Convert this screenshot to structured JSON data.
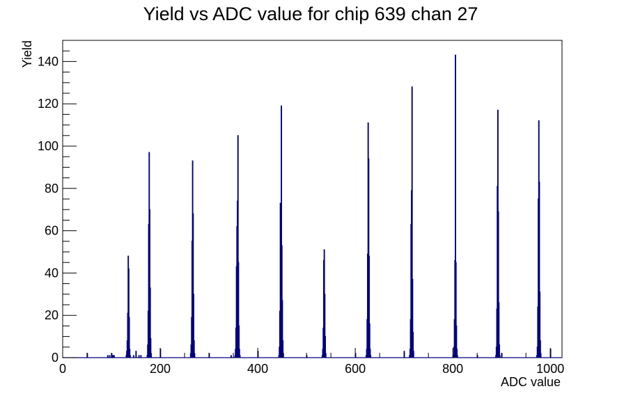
{
  "chart_data": {
    "type": "histogram",
    "title": "Yield vs ADC value for chip 639 chan 27",
    "xlabel": "ADC value",
    "ylabel": "Yield",
    "xlim": [
      0,
      1024
    ],
    "ylim": [
      0,
      150
    ],
    "x_ticks": [
      0,
      200,
      400,
      600,
      800,
      1000
    ],
    "y_ticks": [
      0,
      20,
      40,
      60,
      80,
      100,
      120,
      140
    ],
    "grid": false,
    "legend": "none",
    "line_color": "#000080",
    "bin_width": 1,
    "bins": [
      [
        50,
        2
      ],
      [
        92,
        1
      ],
      [
        96,
        1
      ],
      [
        100,
        2
      ],
      [
        101,
        1
      ],
      [
        103,
        1
      ],
      [
        105,
        1
      ],
      [
        130,
        1
      ],
      [
        131,
        3
      ],
      [
        132,
        8
      ],
      [
        133,
        21
      ],
      [
        134,
        48
      ],
      [
        135,
        42
      ],
      [
        136,
        19
      ],
      [
        137,
        4
      ],
      [
        138,
        1
      ],
      [
        145,
        1
      ],
      [
        150,
        3
      ],
      [
        156,
        1
      ],
      [
        160,
        1
      ],
      [
        173,
        1
      ],
      [
        174,
        6
      ],
      [
        175,
        22
      ],
      [
        176,
        63
      ],
      [
        177,
        97
      ],
      [
        178,
        70
      ],
      [
        179,
        33
      ],
      [
        180,
        9
      ],
      [
        181,
        2
      ],
      [
        200,
        4
      ],
      [
        262,
        2
      ],
      [
        263,
        6
      ],
      [
        264,
        19
      ],
      [
        265,
        55
      ],
      [
        266,
        93
      ],
      [
        267,
        68
      ],
      [
        268,
        30
      ],
      [
        269,
        8
      ],
      [
        270,
        2
      ],
      [
        300,
        2
      ],
      [
        345,
        1
      ],
      [
        353,
        1
      ],
      [
        354,
        4
      ],
      [
        355,
        14
      ],
      [
        356,
        43
      ],
      [
        357,
        62
      ],
      [
        358,
        74
      ],
      [
        359,
        105
      ],
      [
        360,
        45
      ],
      [
        361,
        15
      ],
      [
        362,
        4
      ],
      [
        363,
        1
      ],
      [
        400,
        3
      ],
      [
        443,
        1
      ],
      [
        444,
        5
      ],
      [
        445,
        22
      ],
      [
        446,
        73
      ],
      [
        447,
        65
      ],
      [
        448,
        119
      ],
      [
        449,
        53
      ],
      [
        450,
        27
      ],
      [
        451,
        8
      ],
      [
        452,
        2
      ],
      [
        500,
        1
      ],
      [
        532,
        1
      ],
      [
        533,
        4
      ],
      [
        534,
        14
      ],
      [
        535,
        46
      ],
      [
        536,
        51
      ],
      [
        537,
        30
      ],
      [
        538,
        10
      ],
      [
        539,
        2
      ],
      [
        600,
        2
      ],
      [
        622,
        1
      ],
      [
        623,
        4
      ],
      [
        624,
        18
      ],
      [
        625,
        49
      ],
      [
        626,
        111
      ],
      [
        627,
        94
      ],
      [
        628,
        48
      ],
      [
        629,
        16
      ],
      [
        630,
        4
      ],
      [
        631,
        1
      ],
      [
        700,
        3
      ],
      [
        711,
        1
      ],
      [
        712,
        4
      ],
      [
        713,
        18
      ],
      [
        714,
        63
      ],
      [
        715,
        79
      ],
      [
        716,
        128
      ],
      [
        717,
        37
      ],
      [
        718,
        12
      ],
      [
        719,
        3
      ],
      [
        801,
        1
      ],
      [
        802,
        5
      ],
      [
        803,
        18
      ],
      [
        804,
        46
      ],
      [
        805,
        143
      ],
      [
        806,
        45
      ],
      [
        807,
        15
      ],
      [
        808,
        4
      ],
      [
        809,
        1
      ],
      [
        850,
        1
      ],
      [
        888,
        1
      ],
      [
        889,
        5
      ],
      [
        890,
        23
      ],
      [
        891,
        81
      ],
      [
        892,
        117
      ],
      [
        893,
        69
      ],
      [
        894,
        26
      ],
      [
        895,
        6
      ],
      [
        896,
        1
      ],
      [
        900,
        2
      ],
      [
        972,
        1
      ],
      [
        973,
        5
      ],
      [
        974,
        24
      ],
      [
        975,
        75
      ],
      [
        976,
        112
      ],
      [
        977,
        83
      ],
      [
        978,
        31
      ],
      [
        979,
        8
      ],
      [
        980,
        2
      ],
      [
        1000,
        4
      ]
    ]
  }
}
